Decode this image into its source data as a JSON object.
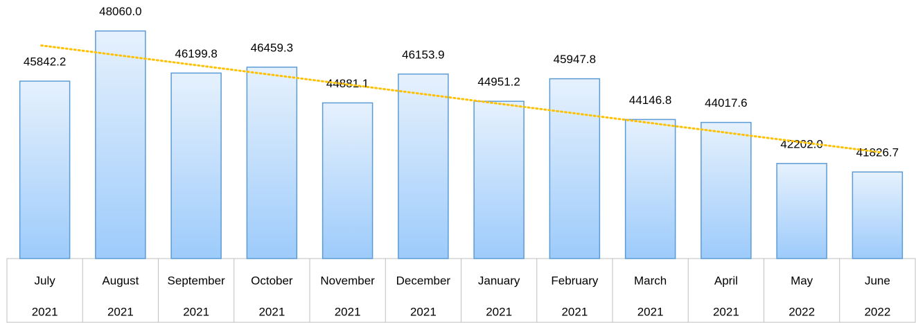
{
  "chart_data": {
    "type": "bar",
    "categories": [
      [
        "July",
        "2021"
      ],
      [
        "August",
        "2021"
      ],
      [
        "September",
        "2021"
      ],
      [
        "October",
        "2021"
      ],
      [
        "November",
        "2021"
      ],
      [
        "December",
        "2021"
      ],
      [
        "January",
        "2021"
      ],
      [
        "February",
        "2021"
      ],
      [
        "March",
        "2021"
      ],
      [
        "April",
        "2021"
      ],
      [
        "May",
        "2022"
      ],
      [
        "June",
        "2022"
      ]
    ],
    "values": [
      45842.2,
      48060.0,
      46199.8,
      46459.3,
      44881.1,
      46153.9,
      44951.2,
      45947.8,
      44146.8,
      44017.6,
      42202.0,
      41826.7
    ],
    "value_labels": [
      "45842.2",
      "48060.0",
      "46199.8",
      "46459.3",
      "44881.1",
      "46153.9",
      "44951.2",
      "45947.8",
      "44146.8",
      "44017.6",
      "42202.0",
      "41826.7"
    ],
    "color": "#5b9bd5",
    "ylim": [
      38000,
      49000
    ],
    "trendline": true,
    "trendline_color": "#ffc000"
  }
}
